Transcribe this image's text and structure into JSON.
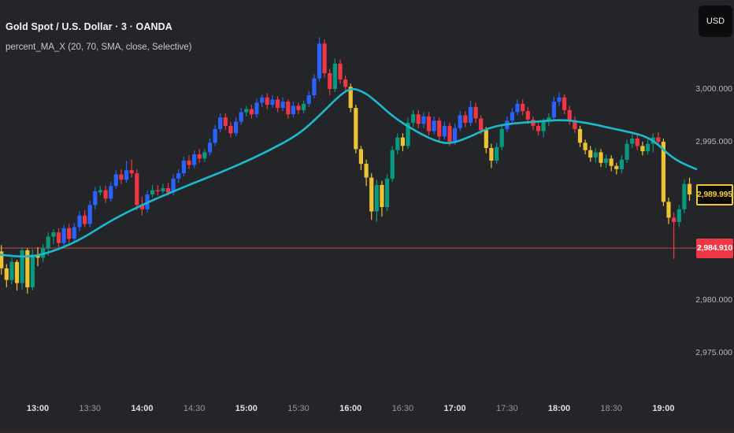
{
  "header": {
    "title": "Gold Spot / U.S. Dollar · 3 · OANDA",
    "indicator": "percent_MA_X (20, 70, SMA, close, Selective)"
  },
  "currency_badge": {
    "label": "USD"
  },
  "price_axis": {
    "last_price_badge": {
      "text": "2,989.995",
      "value": 2989.995
    },
    "price_line_badge": {
      "text": "2,984.910",
      "value": 2984.91
    }
  },
  "chart_data": {
    "type": "candlestick",
    "symbol": "Gold Spot / U.S. Dollar",
    "interval": "3",
    "exchange": "OANDA",
    "indicator": "percent_MA_X (20, 70, SMA, close, Selective)",
    "start_time": "12:39",
    "interval_minutes": 3,
    "ylim": [
      2973.5,
      3006.5
    ],
    "grid": false,
    "legend_position": "top-left",
    "last_price": 2989.995,
    "price_line": {
      "value": 2984.91
    },
    "colors": {
      "background": "#242528",
      "up_above_ma": "#2962ff",
      "down_above_ma": "#f23645",
      "up_below_ma": "#089981",
      "down_below_ma": "#edc233",
      "ma": "#1cb9cc",
      "price_line": "#7d383c",
      "last_badge": "#f0c437",
      "line_badge_bg": "#f23645"
    },
    "price_ticks": [
      {
        "text": "3,000.000",
        "value": 3000
      },
      {
        "text": "2,995.000",
        "value": 2995
      },
      {
        "text": "2,980.000",
        "value": 2980
      },
      {
        "text": "2,975.000",
        "value": 2975
      }
    ],
    "time_labels": [
      {
        "text": "13:00",
        "strong": true
      },
      {
        "text": "13:30",
        "strong": false
      },
      {
        "text": "14:00",
        "strong": true
      },
      {
        "text": "14:30",
        "strong": false
      },
      {
        "text": "15:00",
        "strong": true
      },
      {
        "text": "15:30",
        "strong": false
      },
      {
        "text": "16:00",
        "strong": true
      },
      {
        "text": "16:30",
        "strong": false
      },
      {
        "text": "17:00",
        "strong": true
      },
      {
        "text": "17:30",
        "strong": false
      },
      {
        "text": "18:00",
        "strong": true
      },
      {
        "text": "18:30",
        "strong": false
      },
      {
        "text": "19:00",
        "strong": true
      }
    ],
    "candles": [
      [
        2984.6,
        2985.2,
        2982.4,
        2983.0,
        "y"
      ],
      [
        2983.0,
        2983.4,
        2981.2,
        2981.9,
        "y"
      ],
      [
        2981.9,
        2984.0,
        2981.5,
        2983.6,
        "g"
      ],
      [
        2983.6,
        2983.8,
        2980.9,
        2981.6,
        "y"
      ],
      [
        2981.6,
        2985.0,
        2981.0,
        2984.7,
        "g"
      ],
      [
        2984.7,
        2984.9,
        2980.6,
        2981.2,
        "y"
      ],
      [
        2981.2,
        2984.8,
        2980.9,
        2984.3,
        "g"
      ],
      [
        2984.3,
        2985.0,
        2983.2,
        2984.0,
        "y"
      ],
      [
        2984.0,
        2985.3,
        2983.6,
        2984.9,
        "g"
      ],
      [
        2984.9,
        2986.4,
        2984.2,
        2986.0,
        "g"
      ],
      [
        2986.0,
        2986.7,
        2985.3,
        2986.4,
        "g"
      ],
      [
        2986.4,
        2986.8,
        2985.0,
        2985.4,
        "r"
      ],
      [
        2985.4,
        2987.1,
        2985.1,
        2986.8,
        "b"
      ],
      [
        2986.8,
        2987.2,
        2985.4,
        2985.8,
        "r"
      ],
      [
        2985.8,
        2987.3,
        2985.5,
        2986.9,
        "b"
      ],
      [
        2986.9,
        2988.4,
        2986.5,
        2988.0,
        "b"
      ],
      [
        2988.0,
        2988.5,
        2986.9,
        2987.2,
        "r"
      ],
      [
        2987.2,
        2989.4,
        2986.9,
        2989.0,
        "b"
      ],
      [
        2989.0,
        2990.7,
        2988.6,
        2990.3,
        "b"
      ],
      [
        2990.2,
        2990.8,
        2989.9,
        2990.4,
        "g"
      ],
      [
        2990.4,
        2990.8,
        2989.2,
        2989.6,
        "r"
      ],
      [
        2989.6,
        2991.2,
        2989.3,
        2990.8,
        "b"
      ],
      [
        2990.8,
        2992.3,
        2990.5,
        2991.9,
        "b"
      ],
      [
        2991.9,
        2992.4,
        2991.0,
        2991.4,
        "r"
      ],
      [
        2991.4,
        2993.2,
        2991.1,
        2992.3,
        "b"
      ],
      [
        2992.3,
        2993.3,
        2991.6,
        2992.0,
        "r"
      ],
      [
        2992.0,
        2992.4,
        2988.5,
        2989.0,
        "r"
      ],
      [
        2989.0,
        2989.8,
        2988.0,
        2988.6,
        "r"
      ],
      [
        2988.6,
        2990.4,
        2988.3,
        2990.0,
        "b"
      ],
      [
        2990.0,
        2990.9,
        2989.7,
        2990.4,
        "g"
      ],
      [
        2990.4,
        2990.9,
        2989.9,
        2990.3,
        "r"
      ],
      [
        2990.3,
        2991.0,
        2990.1,
        2990.6,
        "g"
      ],
      [
        2990.6,
        2991.1,
        2989.9,
        2990.2,
        "r"
      ],
      [
        2990.2,
        2991.9,
        2989.9,
        2991.5,
        "b"
      ],
      [
        2991.5,
        2992.4,
        2991.1,
        2992.0,
        "b"
      ],
      [
        2992.0,
        2993.6,
        2991.7,
        2993.2,
        "b"
      ],
      [
        2993.2,
        2993.7,
        2992.4,
        2992.8,
        "r"
      ],
      [
        2992.8,
        2994.2,
        2992.5,
        2993.8,
        "b"
      ],
      [
        2993.8,
        2994.3,
        2993.0,
        2993.4,
        "r"
      ],
      [
        2993.4,
        2994.3,
        2993.1,
        2994.0,
        "g"
      ],
      [
        2994.0,
        2995.3,
        2993.7,
        2994.9,
        "b"
      ],
      [
        2994.9,
        2996.6,
        2994.6,
        2996.2,
        "b"
      ],
      [
        2996.2,
        2997.7,
        2995.9,
        2997.3,
        "b"
      ],
      [
        2997.3,
        2997.7,
        2996.1,
        2996.5,
        "r"
      ],
      [
        2996.5,
        2996.9,
        2995.4,
        2995.8,
        "r"
      ],
      [
        2995.8,
        2997.3,
        2995.5,
        2996.9,
        "b"
      ],
      [
        2996.9,
        2998.2,
        2996.6,
        2997.8,
        "b"
      ],
      [
        2997.8,
        2998.4,
        2997.4,
        2998.1,
        "g"
      ],
      [
        2998.1,
        2998.5,
        2997.2,
        2997.6,
        "r"
      ],
      [
        2997.6,
        2999.1,
        2997.3,
        2998.7,
        "b"
      ],
      [
        2998.7,
        2999.5,
        2998.3,
        2999.2,
        "b"
      ],
      [
        2999.2,
        2999.6,
        2998.1,
        2998.5,
        "r"
      ],
      [
        2998.5,
        2999.4,
        2998.2,
        2999.0,
        "b"
      ],
      [
        2999.0,
        2999.3,
        2997.8,
        2998.2,
        "r"
      ],
      [
        2998.2,
        2999.2,
        2997.9,
        2998.8,
        "b"
      ],
      [
        2998.8,
        2999.0,
        2997.2,
        2997.6,
        "r"
      ],
      [
        2997.6,
        2998.8,
        2997.3,
        2998.4,
        "b"
      ],
      [
        2998.4,
        2998.7,
        2997.6,
        2998.0,
        "r"
      ],
      [
        2998.0,
        2998.9,
        2997.7,
        2998.6,
        "g"
      ],
      [
        2998.6,
        2999.8,
        2998.3,
        2999.4,
        "b"
      ],
      [
        2999.4,
        3001.4,
        2999.1,
        3001.0,
        "b"
      ],
      [
        3001.0,
        3004.9,
        3000.7,
        3004.3,
        "b"
      ],
      [
        3004.3,
        3004.7,
        3001.1,
        3001.5,
        "r"
      ],
      [
        3001.5,
        3001.9,
        2999.4,
        3000.0,
        "r"
      ],
      [
        3000.0,
        3002.9,
        2999.7,
        3002.4,
        "g"
      ],
      [
        3002.4,
        3002.8,
        3000.5,
        3000.9,
        "r"
      ],
      [
        3000.9,
        3001.3,
        2999.9,
        3000.2,
        "r"
      ],
      [
        3000.2,
        3000.5,
        2997.8,
        2998.2,
        "y"
      ],
      [
        2998.2,
        2998.5,
        2993.9,
        2994.3,
        "y"
      ],
      [
        2994.3,
        2994.6,
        2992.3,
        2992.9,
        "y"
      ],
      [
        2992.9,
        2993.3,
        2990.8,
        2991.6,
        "y"
      ],
      [
        2991.6,
        2992.0,
        2987.6,
        2988.4,
        "y"
      ],
      [
        2988.4,
        2991.4,
        2987.4,
        2990.9,
        "g"
      ],
      [
        2990.9,
        2991.3,
        2987.9,
        2988.8,
        "y"
      ],
      [
        2988.8,
        2991.9,
        2988.4,
        2991.5,
        "g"
      ],
      [
        2991.5,
        2994.6,
        2991.2,
        2994.2,
        "g"
      ],
      [
        2994.2,
        2995.8,
        2993.8,
        2995.4,
        "g"
      ],
      [
        2995.4,
        2995.8,
        2994.1,
        2994.6,
        "y"
      ],
      [
        2994.6,
        2997.3,
        2994.3,
        2996.8,
        "g"
      ],
      [
        2996.8,
        2998.0,
        2996.4,
        2997.6,
        "g"
      ],
      [
        2997.6,
        2998.0,
        2996.3,
        2996.7,
        "r"
      ],
      [
        2996.7,
        2997.8,
        2996.3,
        2997.4,
        "b"
      ],
      [
        2997.4,
        2997.8,
        2995.6,
        2996.0,
        "r"
      ],
      [
        2996.0,
        2997.4,
        2995.7,
        2997.0,
        "b"
      ],
      [
        2997.0,
        2997.3,
        2995.1,
        2995.5,
        "r"
      ],
      [
        2995.5,
        2996.9,
        2995.2,
        2996.5,
        "b"
      ],
      [
        2996.5,
        2996.8,
        2994.6,
        2995.0,
        "r"
      ],
      [
        2995.0,
        2996.7,
        2994.7,
        2996.3,
        "b"
      ],
      [
        2996.3,
        2997.9,
        2996.0,
        2997.5,
        "b"
      ],
      [
        2997.5,
        2997.9,
        2996.4,
        2996.8,
        "r"
      ],
      [
        2996.8,
        2998.9,
        2996.5,
        2998.3,
        "b"
      ],
      [
        2998.3,
        2998.7,
        2996.8,
        2997.2,
        "r"
      ],
      [
        2997.2,
        2997.5,
        2995.7,
        2996.1,
        "r"
      ],
      [
        2996.1,
        2996.4,
        2993.9,
        2994.4,
        "y"
      ],
      [
        2994.4,
        2994.8,
        2992.5,
        2993.2,
        "y"
      ],
      [
        2993.2,
        2994.9,
        2992.9,
        2994.5,
        "g"
      ],
      [
        2994.5,
        2996.6,
        2994.2,
        2996.2,
        "g"
      ],
      [
        2996.2,
        2997.4,
        2995.9,
        2997.0,
        "b"
      ],
      [
        2997.0,
        2998.2,
        2996.7,
        2997.8,
        "b"
      ],
      [
        2997.8,
        2999.0,
        2997.5,
        2998.6,
        "b"
      ],
      [
        2998.6,
        2999.0,
        2997.5,
        2997.9,
        "r"
      ],
      [
        2997.9,
        2998.3,
        2996.7,
        2997.1,
        "r"
      ],
      [
        2997.1,
        2997.4,
        2996.1,
        2996.5,
        "r"
      ],
      [
        2996.5,
        2996.9,
        2995.6,
        2996.0,
        "r"
      ],
      [
        2996.0,
        2997.2,
        2995.4,
        2996.9,
        "g"
      ],
      [
        2996.9,
        2997.7,
        2996.5,
        2997.3,
        "g"
      ],
      [
        2997.3,
        2999.3,
        2997.0,
        2998.8,
        "b"
      ],
      [
        2998.8,
        2999.7,
        2998.4,
        2999.2,
        "b"
      ],
      [
        2999.2,
        2999.5,
        2997.6,
        2998.0,
        "r"
      ],
      [
        2998.0,
        2998.4,
        2996.6,
        2997.0,
        "r"
      ],
      [
        2997.0,
        2997.4,
        2995.8,
        2996.2,
        "r"
      ],
      [
        2996.2,
        2996.5,
        2994.5,
        2994.9,
        "y"
      ],
      [
        2994.9,
        2995.2,
        2993.8,
        2994.2,
        "y"
      ],
      [
        2994.2,
        2994.6,
        2993.1,
        2993.5,
        "y"
      ],
      [
        2993.5,
        2994.4,
        2993.0,
        2994.0,
        "g"
      ],
      [
        2994.0,
        2994.3,
        2992.6,
        2993.0,
        "y"
      ],
      [
        2993.0,
        2993.8,
        2992.5,
        2993.4,
        "g"
      ],
      [
        2993.4,
        2993.7,
        2992.2,
        2992.7,
        "y"
      ],
      [
        2992.7,
        2993.0,
        2991.9,
        2992.4,
        "y"
      ],
      [
        2992.4,
        2993.7,
        2992.0,
        2993.3,
        "g"
      ],
      [
        2993.3,
        2995.2,
        2993.0,
        2994.8,
        "g"
      ],
      [
        2994.8,
        2995.7,
        2994.4,
        2995.3,
        "g"
      ],
      [
        2995.3,
        2995.8,
        2994.2,
        2994.6,
        "r"
      ],
      [
        2994.6,
        2995.0,
        2993.7,
        2994.1,
        "y"
      ],
      [
        2994.1,
        2995.2,
        2993.8,
        2994.8,
        "g"
      ],
      [
        2994.8,
        2995.8,
        2994.0,
        2995.4,
        "g"
      ],
      [
        2995.4,
        2995.9,
        2994.6,
        2995.0,
        "r"
      ],
      [
        2995.0,
        2995.3,
        2988.9,
        2989.3,
        "y"
      ],
      [
        2989.3,
        2989.7,
        2987.2,
        2987.8,
        "y"
      ],
      [
        2987.8,
        2988.3,
        2983.9,
        2987.4,
        "r"
      ],
      [
        2987.4,
        2989.0,
        2986.9,
        2988.6,
        "g"
      ],
      [
        2988.6,
        2991.4,
        2988.2,
        2991.0,
        "g"
      ],
      [
        2991.0,
        2991.6,
        2989.4,
        2990.0,
        "y"
      ]
    ],
    "ma_line": [
      [
        0,
        2984.3
      ],
      [
        30,
        2984.0
      ],
      [
        60,
        2984.4
      ],
      [
        100,
        2985.6
      ],
      [
        140,
        2987.5
      ],
      [
        180,
        2989.0
      ],
      [
        220,
        2990.3
      ],
      [
        260,
        2991.5
      ],
      [
        300,
        2992.7
      ],
      [
        340,
        2994.1
      ],
      [
        380,
        2995.7
      ],
      [
        410,
        2997.8
      ],
      [
        430,
        2999.3
      ],
      [
        445,
        3000.1
      ],
      [
        460,
        2999.8
      ],
      [
        475,
        2999.0
      ],
      [
        500,
        2997.3
      ],
      [
        530,
        2995.9
      ],
      [
        555,
        2995.0
      ],
      [
        572,
        2994.8
      ],
      [
        595,
        2995.4
      ],
      [
        620,
        2996.3
      ],
      [
        645,
        2996.7
      ],
      [
        680,
        2996.9
      ],
      [
        715,
        2997.1
      ],
      [
        745,
        2996.8
      ],
      [
        775,
        2996.3
      ],
      [
        800,
        2995.9
      ],
      [
        820,
        2995.5
      ],
      [
        835,
        2994.8
      ],
      [
        850,
        2993.7
      ],
      [
        865,
        2993.0
      ],
      [
        884,
        2992.4
      ]
    ]
  }
}
